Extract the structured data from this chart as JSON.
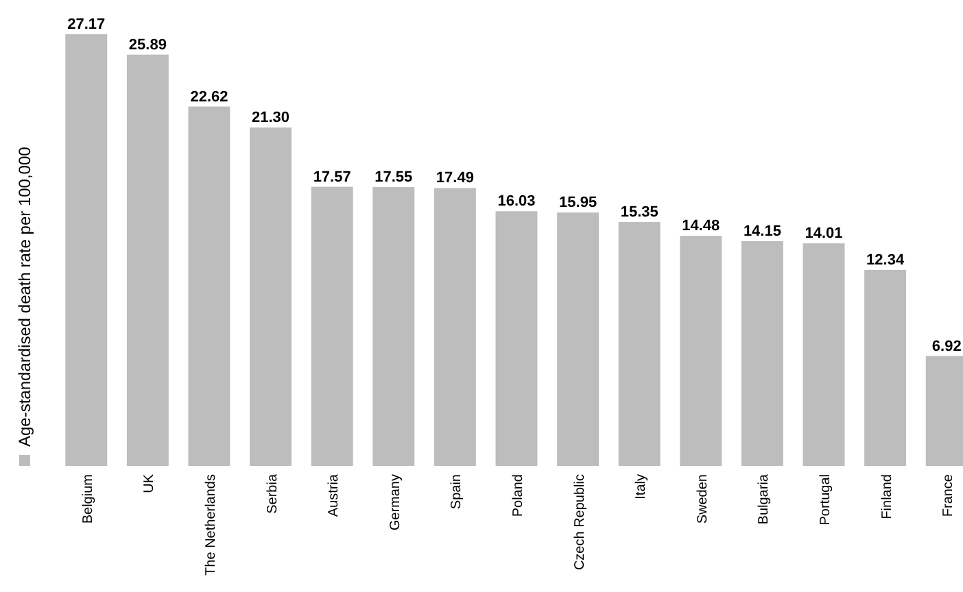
{
  "chart_data": {
    "type": "bar",
    "categories": [
      "Belgium",
      "UK",
      "The Netherlands",
      "Serbia",
      "Austria",
      "Germany",
      "Spain",
      "Poland",
      "Czech Republic",
      "Italy",
      "Sweden",
      "Bulgaria",
      "Portugal",
      "Finland",
      "France"
    ],
    "series": [
      {
        "name": "Age-standardised death rate per 100,000",
        "color": "#bdbdbd",
        "values": [
          27.17,
          25.89,
          22.62,
          21.3,
          17.57,
          17.55,
          17.49,
          16.03,
          15.95,
          15.35,
          14.48,
          14.15,
          14.01,
          12.34,
          6.92
        ],
        "value_labels": [
          "27.17",
          "25.89",
          "22.62",
          "21.30",
          "17.57",
          "17.55",
          "17.49",
          "16.03",
          "15.95",
          "15.35",
          "14.48",
          "14.15",
          "14.01",
          "12.34",
          "6.92"
        ]
      }
    ],
    "legend": "left"
  }
}
